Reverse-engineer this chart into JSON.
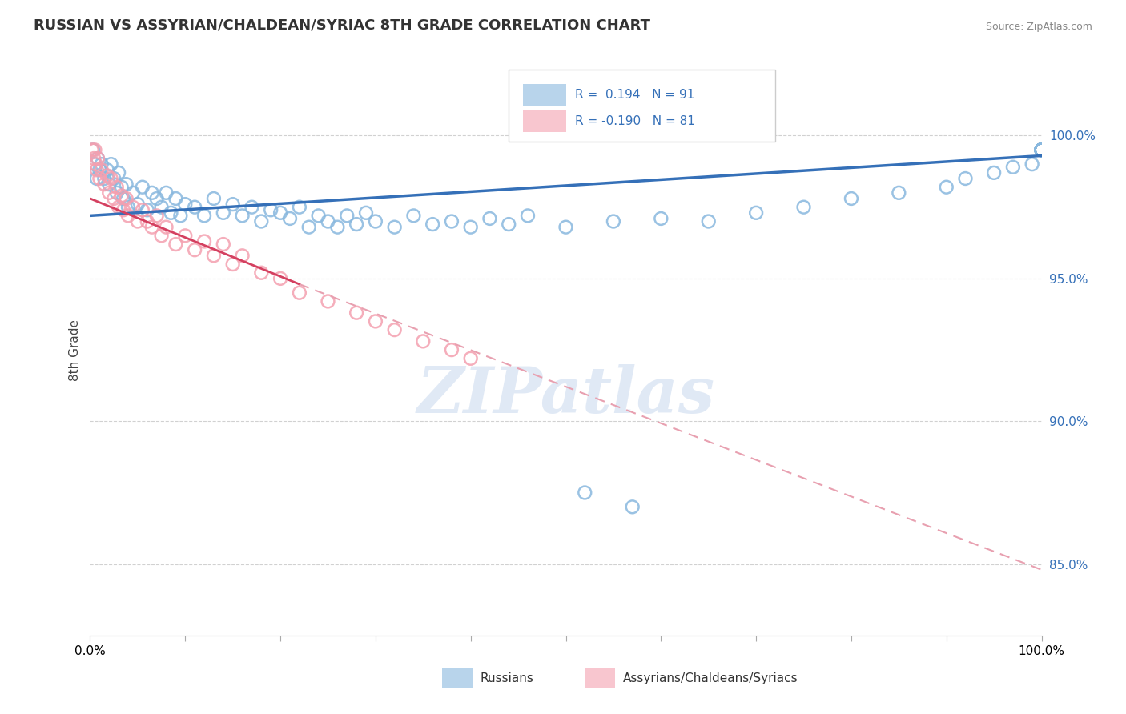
{
  "title": "RUSSIAN VS ASSYRIAN/CHALDEAN/SYRIAC 8TH GRADE CORRELATION CHART",
  "source": "Source: ZipAtlas.com",
  "ylabel": "8th Grade",
  "yticks": [
    85.0,
    90.0,
    95.0,
    100.0
  ],
  "ytick_labels": [
    "85.0%",
    "90.0%",
    "95.0%",
    "100.0%"
  ],
  "xlim": [
    0.0,
    100.0
  ],
  "ylim": [
    82.5,
    102.5
  ],
  "blue_R": 0.194,
  "blue_N": 91,
  "pink_R": -0.19,
  "pink_N": 81,
  "blue_color": "#89b8de",
  "pink_color": "#f4a0b0",
  "blue_line_color": "#3570b8",
  "pink_line_color": "#d44060",
  "pink_dash_color": "#e8a0b0",
  "legend_label_blue": "Russians",
  "legend_label_pink": "Assyrians/Chaldeans/Syriacs",
  "watermark": "ZIPatlas",
  "blue_line_start_y": 97.2,
  "blue_line_end_y": 99.3,
  "pink_solid_start_x": 0,
  "pink_solid_start_y": 97.8,
  "pink_solid_end_x": 22,
  "pink_solid_end_y": 94.8,
  "pink_dash_start_x": 22,
  "pink_dash_start_y": 94.8,
  "pink_dash_end_x": 100,
  "pink_dash_end_y": 84.8,
  "blue_scatter_x": [
    0.3,
    0.5,
    0.7,
    0.8,
    1.0,
    1.2,
    1.5,
    1.8,
    2.0,
    2.2,
    2.5,
    2.8,
    3.0,
    3.3,
    3.5,
    3.8,
    4.0,
    4.5,
    5.0,
    5.5,
    6.0,
    6.5,
    7.0,
    7.5,
    8.0,
    8.5,
    9.0,
    9.5,
    10.0,
    11.0,
    12.0,
    13.0,
    14.0,
    15.0,
    16.0,
    17.0,
    18.0,
    19.0,
    20.0,
    21.0,
    22.0,
    23.0,
    24.0,
    25.0,
    26.0,
    27.0,
    28.0,
    29.0,
    30.0,
    32.0,
    34.0,
    36.0,
    38.0,
    40.0,
    42.0,
    44.0,
    46.0,
    50.0,
    52.0,
    55.0,
    57.0,
    60.0,
    65.0,
    70.0,
    75.0,
    80.0,
    85.0,
    90.0,
    92.0,
    95.0,
    97.0,
    99.0,
    100.0,
    100.0,
    100.0,
    100.0,
    100.0,
    100.0,
    100.0,
    100.0,
    100.0,
    100.0,
    100.0,
    100.0,
    100.0,
    100.0,
    100.0,
    100.0,
    100.0,
    100.0,
    100.0
  ],
  "blue_scatter_y": [
    99.5,
    99.0,
    98.5,
    99.2,
    98.8,
    99.0,
    98.5,
    98.8,
    98.3,
    99.0,
    98.5,
    98.0,
    98.7,
    98.2,
    97.8,
    98.3,
    97.5,
    98.0,
    97.6,
    98.2,
    97.4,
    98.0,
    97.8,
    97.5,
    98.0,
    97.3,
    97.8,
    97.2,
    97.6,
    97.5,
    97.2,
    97.8,
    97.3,
    97.6,
    97.2,
    97.5,
    97.0,
    97.4,
    97.3,
    97.1,
    97.5,
    96.8,
    97.2,
    97.0,
    96.8,
    97.2,
    96.9,
    97.3,
    97.0,
    96.8,
    97.2,
    96.9,
    97.0,
    96.8,
    97.1,
    96.9,
    97.2,
    96.8,
    87.5,
    97.0,
    87.0,
    97.1,
    97.0,
    97.3,
    97.5,
    97.8,
    98.0,
    98.2,
    98.5,
    98.7,
    98.9,
    99.0,
    99.5,
    99.5,
    99.5,
    99.5,
    99.5,
    99.5,
    99.5,
    99.5,
    99.5,
    99.5,
    99.5,
    99.5,
    99.5,
    99.5,
    99.5,
    99.5,
    99.5,
    99.5,
    99.5
  ],
  "pink_scatter_x": [
    0.2,
    0.4,
    0.5,
    0.6,
    0.7,
    0.8,
    1.0,
    1.2,
    1.5,
    1.8,
    2.0,
    2.2,
    2.5,
    2.8,
    3.0,
    3.3,
    3.5,
    3.8,
    4.0,
    4.5,
    5.0,
    5.5,
    6.0,
    6.5,
    7.0,
    7.5,
    8.0,
    9.0,
    10.0,
    11.0,
    12.0,
    13.0,
    14.0,
    15.0,
    16.0,
    18.0,
    20.0,
    22.0,
    25.0,
    28.0,
    30.0,
    32.0,
    35.0,
    38.0,
    40.0
  ],
  "pink_scatter_y": [
    99.5,
    99.2,
    99.5,
    99.0,
    98.8,
    99.2,
    98.5,
    98.8,
    98.3,
    98.6,
    98.0,
    98.5,
    97.8,
    98.2,
    97.5,
    97.9,
    97.4,
    97.8,
    97.2,
    97.5,
    97.0,
    97.4,
    97.0,
    96.8,
    97.2,
    96.5,
    96.8,
    96.2,
    96.5,
    96.0,
    96.3,
    95.8,
    96.2,
    95.5,
    95.8,
    95.2,
    95.0,
    94.5,
    94.2,
    93.8,
    93.5,
    93.2,
    92.8,
    92.5,
    92.2
  ]
}
